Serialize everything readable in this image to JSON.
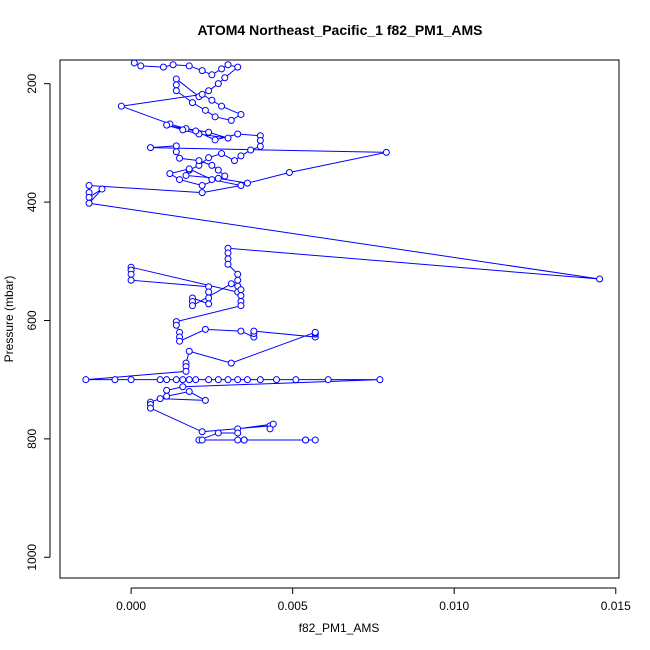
{
  "chart_data": {
    "type": "scatter",
    "title": "ATOM4 Northeast_Pacific_1 f82_PM1_AMS",
    "xlabel": "f82_PM1_AMS",
    "ylabel": "Pressure (mbar)",
    "xlim": [
      -0.0022,
      0.0151
    ],
    "ylim": [
      1035,
      160
    ],
    "y_inverted": true,
    "x_ticks": [
      0.0,
      0.005,
      0.01,
      0.015
    ],
    "x_tick_labels": [
      "0.000",
      "0.005",
      "0.010",
      "0.015"
    ],
    "y_ticks": [
      200,
      400,
      600,
      800,
      1000
    ],
    "y_tick_labels": [
      "200",
      "400",
      "600",
      "800",
      "1000"
    ],
    "grid": false,
    "series": [
      {
        "color": "#0000ff",
        "marker": "open-circle",
        "line": true,
        "x": [
          0.0001,
          0.0003,
          0.001,
          0.0013,
          0.0018,
          0.0022,
          0.0025,
          0.0028,
          0.003,
          0.0033,
          0.0029,
          0.0027,
          0.0024,
          0.0021,
          0.0014,
          0.0014,
          0.0014,
          0.0019,
          0.0023,
          0.0026,
          0.0031,
          0.0034,
          0.0028,
          0.0025,
          0.0022,
          -0.0003,
          0.0012,
          0.0017,
          0.0024,
          0.003,
          0.0021,
          0.0016,
          0.0011,
          0.002,
          0.0026,
          0.0033,
          0.004,
          0.004,
          0.004,
          0.0037,
          0.0034,
          0.0032,
          0.0028,
          0.0024,
          0.0021,
          0.0018,
          0.0017,
          0.0027,
          0.0036,
          0.0049,
          0.0079,
          0.0006,
          0.0014,
          0.0014,
          0.0015,
          0.0021,
          0.0025,
          0.0027,
          0.0029,
          0.0022,
          0.0015,
          0.0012,
          0.0018,
          0.0025,
          0.0034,
          0.0022,
          -0.0013,
          -0.0013,
          -0.0013,
          -0.0009,
          -0.0013,
          0.0145,
          0.003,
          0.003,
          0.003,
          0.003,
          0.0033,
          0.0033,
          0.0033,
          0.0033,
          0.0,
          0.0,
          0.0,
          0.0,
          0.0024,
          0.0024,
          0.0024,
          0.0024,
          0.0019,
          0.0019,
          0.0019,
          0.0031,
          0.0034,
          0.0034,
          0.0034,
          0.0034,
          0.0014,
          0.0014,
          0.0015,
          0.0015,
          0.0015,
          0.0023,
          0.0034,
          0.0038,
          0.0038,
          0.0038,
          0.0057,
          0.0057,
          0.0057,
          0.0057,
          0.0031,
          0.0018,
          0.0017,
          0.0017,
          0.0017,
          -0.0014,
          -0.0005,
          0.0,
          0.0009,
          0.0011,
          0.0014,
          0.0016,
          0.0018,
          0.002,
          0.0024,
          0.0027,
          0.003,
          0.0033,
          0.0036,
          0.004,
          0.0045,
          0.0051,
          0.0061,
          0.0077,
          0.0016,
          0.0011,
          0.0011,
          0.0018,
          0.0023,
          0.0009,
          0.0006,
          0.0006,
          0.0006,
          0.0022,
          0.0043,
          0.0043,
          0.0044,
          0.0033,
          0.0033,
          0.0027,
          0.0021,
          0.0022,
          0.0033,
          0.0035,
          0.0035,
          0.0054,
          0.0054,
          0.0057,
          0.0035
        ],
        "y": [
          165,
          170,
          172,
          168,
          170,
          178,
          185,
          175,
          168,
          172,
          190,
          200,
          212,
          222,
          192,
          202,
          212,
          232,
          245,
          256,
          262,
          252,
          238,
          228,
          218,
          238,
          268,
          276,
          282,
          292,
          285,
          278,
          270,
          280,
          295,
          285,
          288,
          296,
          306,
          312,
          322,
          330,
          318,
          325,
          338,
          346,
          355,
          360,
          368,
          350,
          316,
          308,
          305,
          315,
          326,
          330,
          338,
          346,
          356,
          372,
          362,
          352,
          344,
          362,
          372,
          384,
          372,
          384,
          392,
          378,
          402,
          530,
          478,
          486,
          496,
          505,
          522,
          532,
          542,
          552,
          510,
          515,
          522,
          532,
          543,
          552,
          562,
          572,
          562,
          568,
          575,
          538,
          548,
          558,
          568,
          575,
          602,
          608,
          620,
          628,
          635,
          615,
          618,
          628,
          622,
          618,
          628,
          623,
          621,
          620,
          672,
          652,
          672,
          678,
          686,
          700,
          700,
          700,
          700,
          700,
          700,
          700,
          700,
          700,
          700,
          700,
          700,
          700,
          700,
          700,
          700,
          700,
          700,
          700,
          712,
          718,
          728,
          720,
          735,
          732,
          738,
          742,
          748,
          788,
          778,
          783,
          775,
          783,
          790,
          790,
          802,
          802,
          802,
          802,
          802,
          802,
          802,
          802,
          802
        ]
      }
    ]
  }
}
